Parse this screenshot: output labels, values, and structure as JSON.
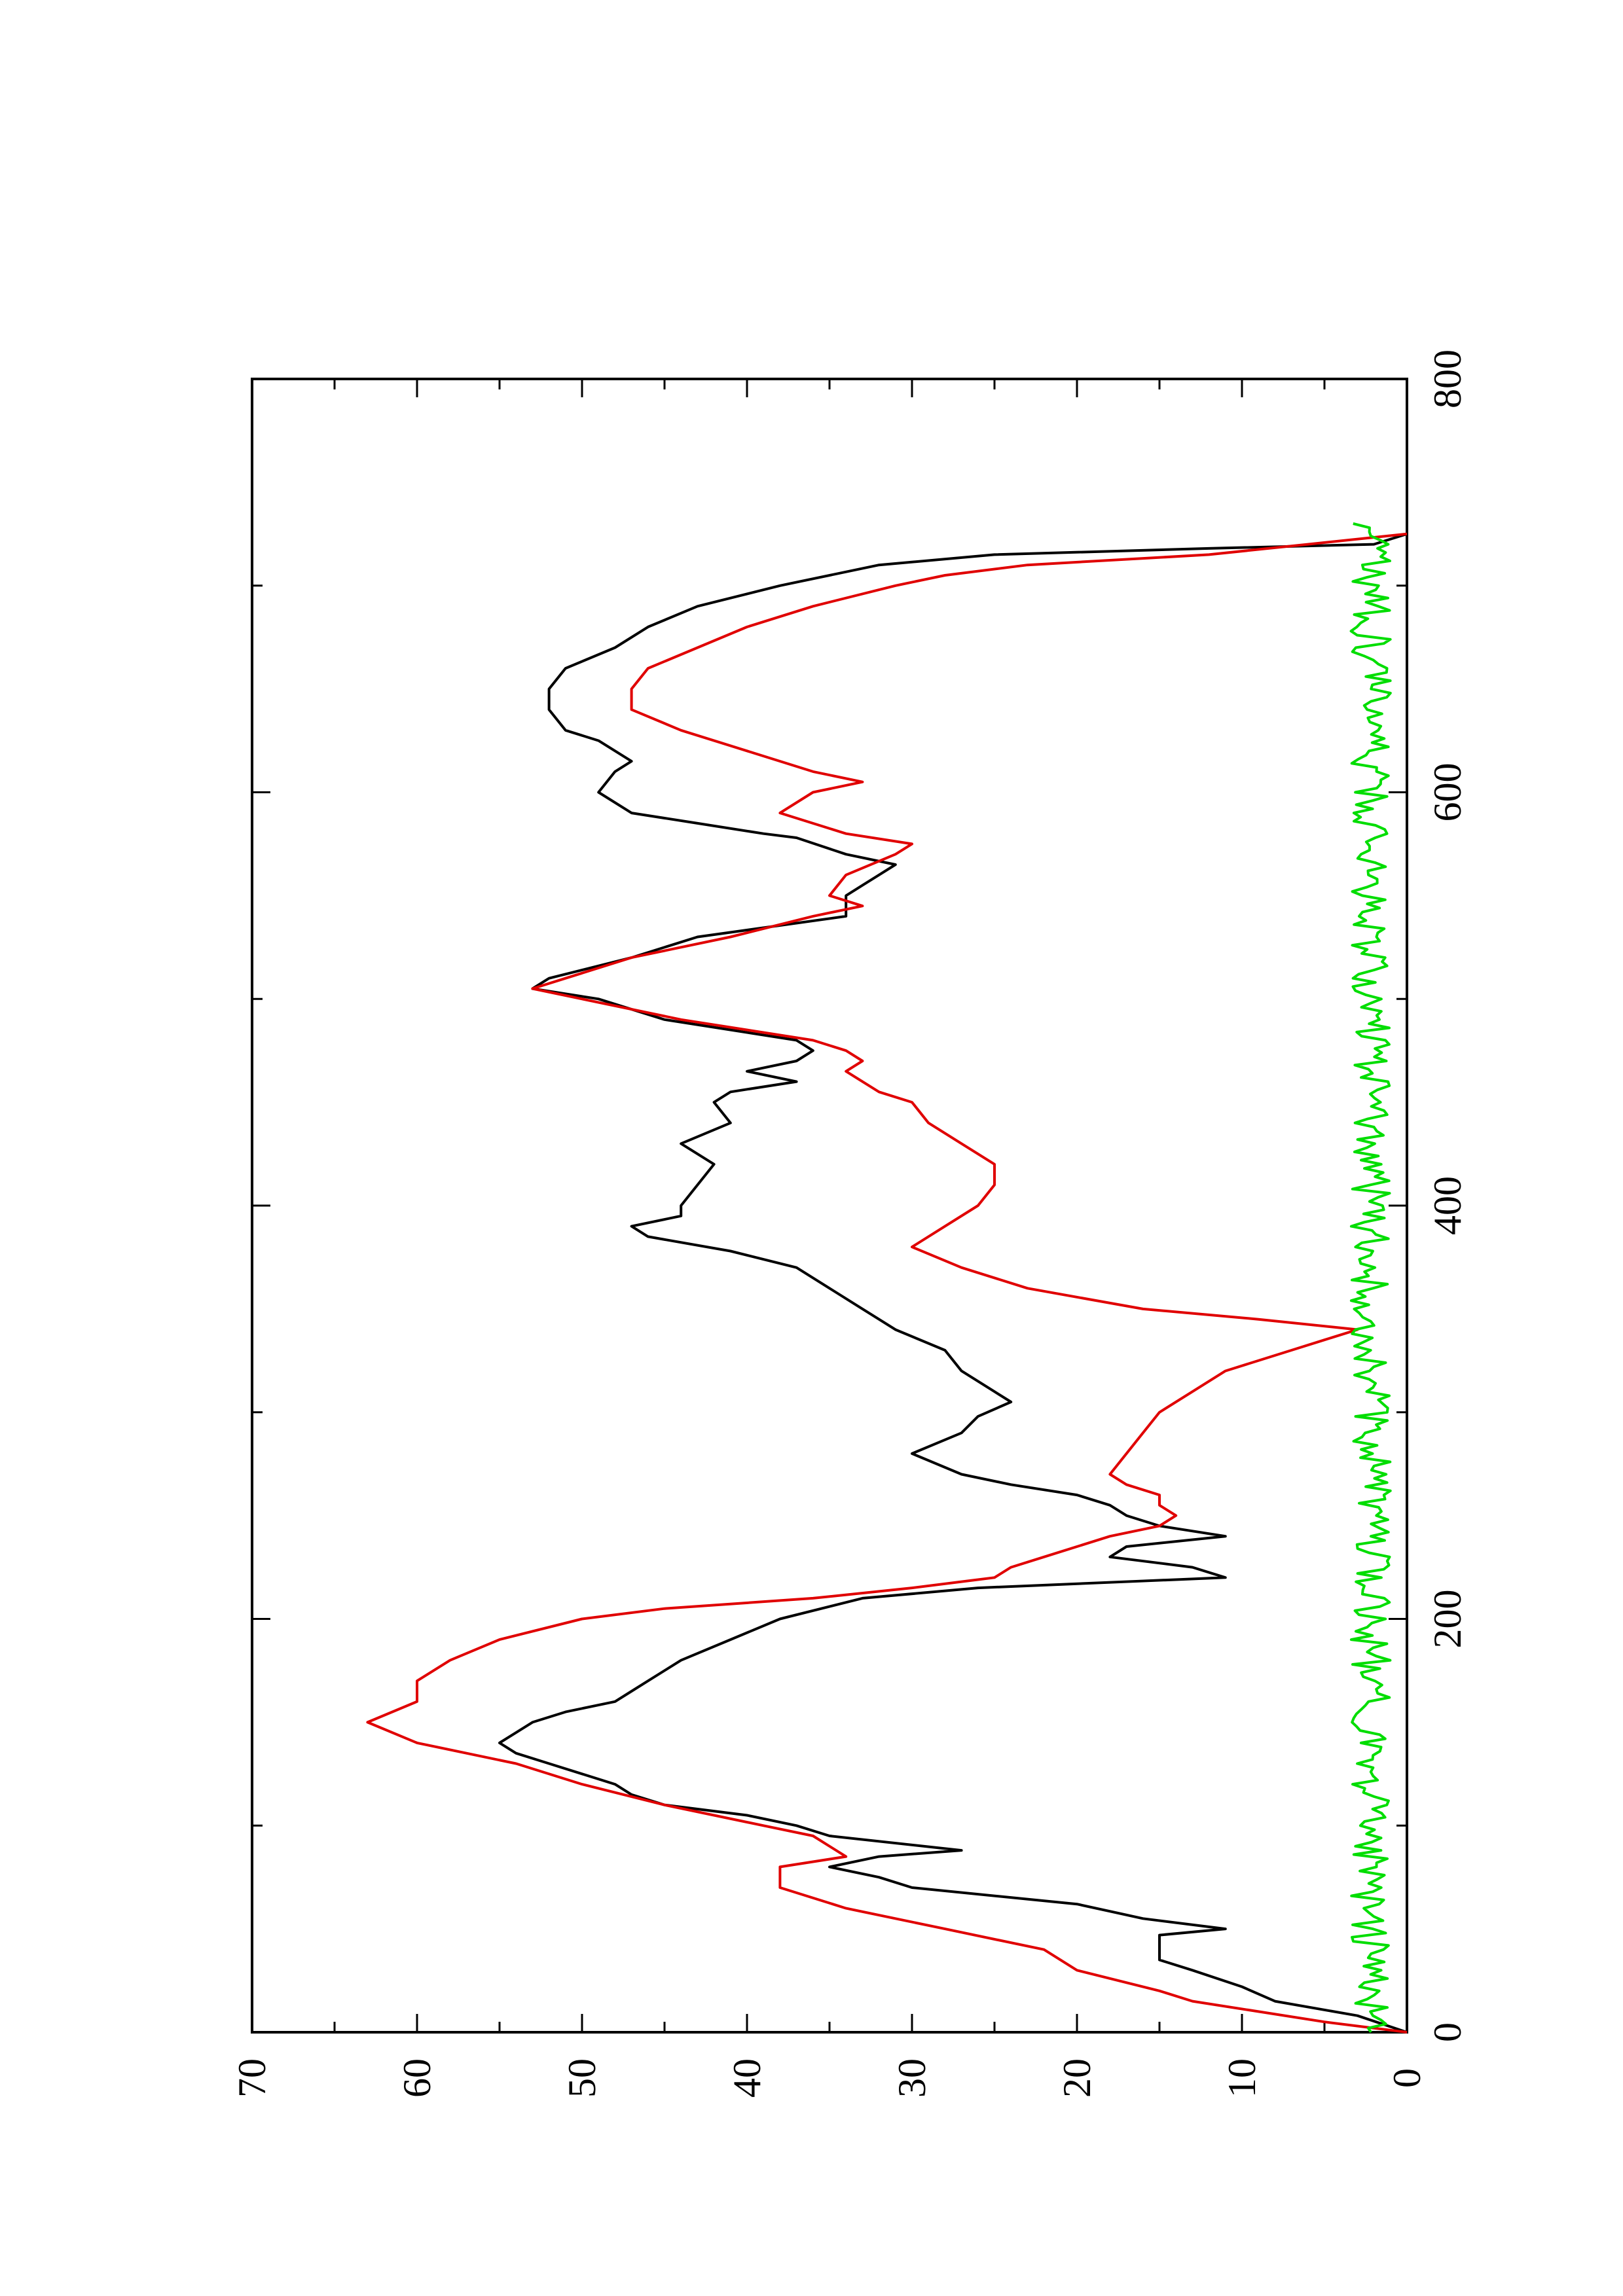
{
  "chart_data": {
    "type": "line",
    "orientation": "rotated 90 degrees counter-clockwise (page portrait, x axis vertical)",
    "title": "",
    "xlabel": "",
    "ylabel": "",
    "xlim": [
      0,
      800
    ],
    "ylim": [
      0,
      70
    ],
    "x_ticks": [
      0,
      200,
      400,
      600,
      800
    ],
    "x_minor_ticks": [
      100,
      300,
      500,
      700
    ],
    "y_ticks": [
      0,
      10,
      20,
      30,
      40,
      50,
      60,
      70
    ],
    "y_minor_ticks": [
      5,
      15,
      25,
      35,
      45,
      55,
      65
    ],
    "grid": false,
    "legend": "none",
    "series": [
      {
        "color": "#000000",
        "points": [
          [
            0,
            0
          ],
          [
            8,
            3
          ],
          [
            15,
            8
          ],
          [
            22,
            10
          ],
          [
            30,
            13
          ],
          [
            35,
            15
          ],
          [
            40,
            15
          ],
          [
            47,
            15
          ],
          [
            50,
            11
          ],
          [
            55,
            16
          ],
          [
            62,
            20
          ],
          [
            70,
            30
          ],
          [
            75,
            32
          ],
          [
            80,
            35
          ],
          [
            85,
            32
          ],
          [
            88,
            27
          ],
          [
            95,
            35
          ],
          [
            100,
            37
          ],
          [
            105,
            40
          ],
          [
            110,
            45
          ],
          [
            115,
            47
          ],
          [
            120,
            48
          ],
          [
            125,
            50
          ],
          [
            130,
            52
          ],
          [
            135,
            54
          ],
          [
            140,
            55
          ],
          [
            145,
            54
          ],
          [
            150,
            53
          ],
          [
            155,
            51
          ],
          [
            160,
            48
          ],
          [
            165,
            47
          ],
          [
            170,
            46
          ],
          [
            180,
            44
          ],
          [
            190,
            41
          ],
          [
            200,
            38
          ],
          [
            210,
            33
          ],
          [
            215,
            26
          ],
          [
            220,
            11
          ],
          [
            225,
            13
          ],
          [
            230,
            18
          ],
          [
            235,
            17
          ],
          [
            240,
            11
          ],
          [
            245,
            15
          ],
          [
            250,
            17
          ],
          [
            255,
            18
          ],
          [
            260,
            20
          ],
          [
            265,
            24
          ],
          [
            270,
            27
          ],
          [
            280,
            30
          ],
          [
            290,
            27
          ],
          [
            298,
            26
          ],
          [
            305,
            24
          ],
          [
            310,
            25
          ],
          [
            320,
            27
          ],
          [
            330,
            28
          ],
          [
            340,
            31
          ],
          [
            345,
            32
          ],
          [
            350,
            33
          ],
          [
            360,
            35
          ],
          [
            370,
            37
          ],
          [
            378,
            41
          ],
          [
            385,
            46
          ],
          [
            390,
            47
          ],
          [
            395,
            44
          ],
          [
            400,
            44
          ],
          [
            410,
            43
          ],
          [
            420,
            42
          ],
          [
            430,
            44
          ],
          [
            440,
            41
          ],
          [
            450,
            42
          ],
          [
            455,
            41
          ],
          [
            460,
            37
          ],
          [
            465,
            40
          ],
          [
            470,
            37
          ],
          [
            475,
            36
          ],
          [
            480,
            37
          ],
          [
            490,
            45
          ],
          [
            500,
            49
          ],
          [
            505,
            53
          ],
          [
            510,
            52
          ],
          [
            520,
            47
          ],
          [
            530,
            43
          ],
          [
            540,
            34
          ],
          [
            550,
            34
          ],
          [
            555,
            33
          ],
          [
            560,
            32
          ],
          [
            565,
            31
          ],
          [
            570,
            34
          ],
          [
            578,
            37
          ],
          [
            580,
            39
          ],
          [
            585,
            43
          ],
          [
            590,
            47
          ],
          [
            600,
            49
          ],
          [
            610,
            48
          ],
          [
            615,
            47
          ],
          [
            620,
            48
          ],
          [
            625,
            49
          ],
          [
            630,
            51
          ],
          [
            640,
            52
          ],
          [
            650,
            52
          ],
          [
            660,
            51
          ],
          [
            670,
            48
          ],
          [
            680,
            46
          ],
          [
            690,
            43
          ],
          [
            700,
            38
          ],
          [
            710,
            32
          ],
          [
            715,
            25
          ],
          [
            718,
            12
          ],
          [
            720,
            2
          ],
          [
            725,
            0
          ]
        ]
      },
      {
        "color": "#e00000",
        "points": [
          [
            0,
            0
          ],
          [
            5,
            5
          ],
          [
            10,
            9
          ],
          [
            15,
            13
          ],
          [
            20,
            15
          ],
          [
            30,
            20
          ],
          [
            40,
            22
          ],
          [
            50,
            28
          ],
          [
            60,
            34
          ],
          [
            70,
            38
          ],
          [
            80,
            38
          ],
          [
            85,
            34
          ],
          [
            95,
            36
          ],
          [
            100,
            39
          ],
          [
            110,
            45
          ],
          [
            120,
            50
          ],
          [
            130,
            54
          ],
          [
            140,
            60
          ],
          [
            150,
            63
          ],
          [
            160,
            60
          ],
          [
            170,
            60
          ],
          [
            180,
            58
          ],
          [
            190,
            55
          ],
          [
            200,
            50
          ],
          [
            205,
            45
          ],
          [
            210,
            36
          ],
          [
            215,
            30
          ],
          [
            220,
            25
          ],
          [
            225,
            24
          ],
          [
            230,
            22
          ],
          [
            240,
            18
          ],
          [
            245,
            15
          ],
          [
            250,
            14
          ],
          [
            255,
            15
          ],
          [
            260,
            15
          ],
          [
            265,
            17
          ],
          [
            270,
            18
          ],
          [
            280,
            17
          ],
          [
            290,
            16
          ],
          [
            300,
            15
          ],
          [
            310,
            13
          ],
          [
            320,
            11
          ],
          [
            330,
            7
          ],
          [
            335,
            5
          ],
          [
            340,
            3
          ],
          [
            345,
            9
          ],
          [
            350,
            16
          ],
          [
            360,
            23
          ],
          [
            370,
            27
          ],
          [
            380,
            30
          ],
          [
            390,
            28
          ],
          [
            400,
            26
          ],
          [
            410,
            25
          ],
          [
            420,
            25
          ],
          [
            430,
            27
          ],
          [
            440,
            29
          ],
          [
            450,
            30
          ],
          [
            455,
            32
          ],
          [
            460,
            33
          ],
          [
            465,
            34
          ],
          [
            470,
            33
          ],
          [
            475,
            34
          ],
          [
            480,
            36
          ],
          [
            490,
            44
          ],
          [
            500,
            50
          ],
          [
            505,
            53
          ],
          [
            510,
            51
          ],
          [
            520,
            47
          ],
          [
            530,
            41
          ],
          [
            540,
            36
          ],
          [
            545,
            33
          ],
          [
            550,
            35
          ],
          [
            560,
            34
          ],
          [
            570,
            31
          ],
          [
            575,
            30
          ],
          [
            580,
            34
          ],
          [
            590,
            38
          ],
          [
            600,
            36
          ],
          [
            605,
            33
          ],
          [
            610,
            36
          ],
          [
            620,
            40
          ],
          [
            630,
            44
          ],
          [
            640,
            47
          ],
          [
            650,
            47
          ],
          [
            660,
            46
          ],
          [
            670,
            43
          ],
          [
            680,
            40
          ],
          [
            690,
            36
          ],
          [
            700,
            31
          ],
          [
            705,
            28
          ],
          [
            710,
            23
          ],
          [
            715,
            12
          ],
          [
            720,
            6
          ],
          [
            725,
            0
          ]
        ]
      },
      {
        "color": "#00dd00",
        "points": "small-amplitude noise at y ≈ 1–3 across x = 0–730"
      }
    ]
  }
}
